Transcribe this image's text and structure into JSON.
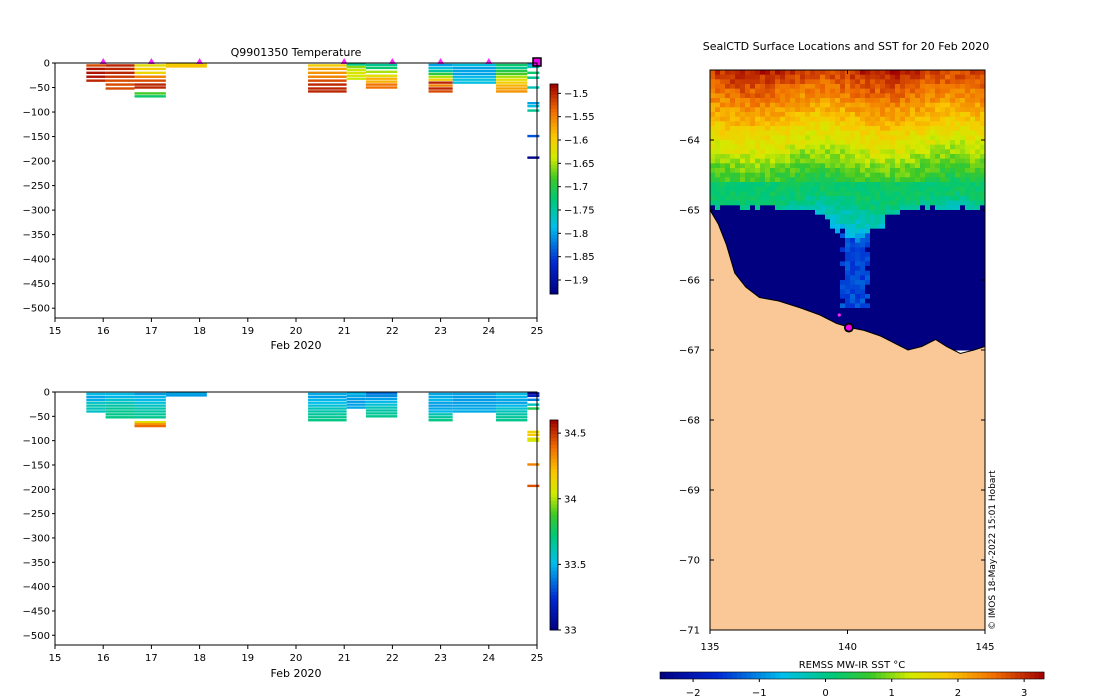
{
  "chart_data": [
    {
      "type": "heatmap",
      "name": "temperature-section",
      "title": "Q9901350  Temperature",
      "xlabel": "Feb 2020",
      "x_ticks": [
        15,
        16,
        17,
        18,
        19,
        20,
        21,
        22,
        23,
        24,
        25
      ],
      "xlim": [
        15,
        25
      ],
      "y_ticks": [
        0,
        -50,
        -100,
        -150,
        -200,
        -250,
        -300,
        -350,
        -400,
        -450,
        -500
      ],
      "ylim": [
        -520,
        0
      ],
      "colorbar": {
        "min": -1.93,
        "max": -1.48,
        "ticks": [
          -1.5,
          -1.55,
          -1.6,
          -1.65,
          -1.7,
          -1.75,
          -1.8,
          -1.85,
          -1.9
        ]
      },
      "profile_markers": [
        16,
        17,
        18,
        21,
        22,
        23,
        24,
        25
      ],
      "profiles": [
        {
          "x0": 15.65,
          "x1": 16.05,
          "levels": [
            {
              "d": -5,
              "v": -1.52
            },
            {
              "d": -12,
              "v": -1.49
            },
            {
              "d": -20,
              "v": -1.49
            },
            {
              "d": -28,
              "v": -1.49
            },
            {
              "d": -36,
              "v": -1.5
            }
          ]
        },
        {
          "x0": 16.05,
          "x1": 16.65,
          "levels": [
            {
              "d": -5,
              "v": -1.5
            },
            {
              "d": -12,
              "v": -1.5
            },
            {
              "d": -20,
              "v": -1.5
            },
            {
              "d": -28,
              "v": -1.51
            },
            {
              "d": -36,
              "v": -1.52
            },
            {
              "d": -44,
              "v": -1.52
            },
            {
              "d": -52,
              "v": -1.52
            }
          ]
        },
        {
          "x0": 16.65,
          "x1": 17.3,
          "levels": [
            {
              "d": -5,
              "v": -1.62
            },
            {
              "d": -12,
              "v": -1.6
            },
            {
              "d": -20,
              "v": -1.61
            },
            {
              "d": -28,
              "v": -1.55
            },
            {
              "d": -36,
              "v": -1.52
            },
            {
              "d": -44,
              "v": -1.5
            },
            {
              "d": -50,
              "v": -1.5
            },
            {
              "d": -62,
              "v": -1.68
            },
            {
              "d": -68,
              "v": -1.72
            }
          ]
        },
        {
          "x0": 17.3,
          "x1": 18.15,
          "levels": [
            {
              "d": -3,
              "v": -1.6
            },
            {
              "d": -7,
              "v": -1.59
            }
          ]
        },
        {
          "x0": 20.25,
          "x1": 21.05,
          "levels": [
            {
              "d": -5,
              "v": -1.6
            },
            {
              "d": -12,
              "v": -1.57
            },
            {
              "d": -20,
              "v": -1.56
            },
            {
              "d": -28,
              "v": -1.55
            },
            {
              "d": -36,
              "v": -1.52
            },
            {
              "d": -44,
              "v": -1.5
            },
            {
              "d": -52,
              "v": -1.5
            },
            {
              "d": -58,
              "v": -1.5
            }
          ]
        },
        {
          "x0": 21.05,
          "x1": 21.45,
          "levels": [
            {
              "d": -3,
              "v": -1.74
            },
            {
              "d": -8,
              "v": -1.66
            },
            {
              "d": -14,
              "v": -1.64
            },
            {
              "d": -20,
              "v": -1.63
            },
            {
              "d": -26,
              "v": -1.63
            },
            {
              "d": -32,
              "v": -1.64
            }
          ]
        },
        {
          "x0": 21.45,
          "x1": 22.1,
          "levels": [
            {
              "d": -4,
              "v": -1.74
            },
            {
              "d": -10,
              "v": -1.72
            },
            {
              "d": -18,
              "v": -1.65
            },
            {
              "d": -26,
              "v": -1.62
            },
            {
              "d": -32,
              "v": -1.58
            },
            {
              "d": -38,
              "v": -1.58
            },
            {
              "d": -44,
              "v": -1.54
            },
            {
              "d": -50,
              "v": -1.54
            }
          ]
        },
        {
          "x0": 22.75,
          "x1": 23.25,
          "levels": [
            {
              "d": -4,
              "v": -1.8
            },
            {
              "d": -10,
              "v": -1.78
            },
            {
              "d": -16,
              "v": -1.75
            },
            {
              "d": -22,
              "v": -1.7
            },
            {
              "d": -28,
              "v": -1.65
            },
            {
              "d": -34,
              "v": -1.6
            },
            {
              "d": -40,
              "v": -1.5
            },
            {
              "d": -46,
              "v": -1.55
            },
            {
              "d": -52,
              "v": -1.5
            },
            {
              "d": -58,
              "v": -1.52
            }
          ]
        },
        {
          "x0": 23.25,
          "x1": 24.15,
          "levels": [
            {
              "d": -4,
              "v": -1.78
            },
            {
              "d": -10,
              "v": -1.8
            },
            {
              "d": -16,
              "v": -1.8
            },
            {
              "d": -22,
              "v": -1.8
            },
            {
              "d": -28,
              "v": -1.79
            },
            {
              "d": -34,
              "v": -1.78
            },
            {
              "d": -40,
              "v": -1.78
            }
          ]
        },
        {
          "x0": 24.15,
          "x1": 24.8,
          "levels": [
            {
              "d": -4,
              "v": -1.72
            },
            {
              "d": -10,
              "v": -1.74
            },
            {
              "d": -16,
              "v": -1.7
            },
            {
              "d": -22,
              "v": -1.68
            },
            {
              "d": -28,
              "v": -1.65
            },
            {
              "d": -34,
              "v": -1.62
            },
            {
              "d": -40,
              "v": -1.6
            },
            {
              "d": -46,
              "v": -1.58
            },
            {
              "d": -52,
              "v": -1.57
            },
            {
              "d": -58,
              "v": -1.56
            }
          ]
        },
        {
          "x0": 24.8,
          "x1": 25.05,
          "levels": [
            {
              "d": -3,
              "v": -1.8
            },
            {
              "d": -8,
              "v": -1.76
            },
            {
              "d": -20,
              "v": -1.72
            },
            {
              "d": -30,
              "v": -1.74
            },
            {
              "d": -50,
              "v": -1.76
            },
            {
              "d": -82,
              "v": -1.8
            },
            {
              "d": -88,
              "v": -1.78
            },
            {
              "d": -97,
              "v": -1.74
            },
            {
              "d": -149,
              "v": -1.84
            },
            {
              "d": -193,
              "v": -1.92
            }
          ]
        }
      ]
    },
    {
      "type": "heatmap",
      "name": "salinity-section",
      "xlabel": "Feb 2020",
      "x_ticks": [
        15,
        16,
        17,
        18,
        19,
        20,
        21,
        22,
        23,
        24,
        25
      ],
      "xlim": [
        15,
        25
      ],
      "y_ticks": [
        0,
        -50,
        -100,
        -150,
        -200,
        -250,
        -300,
        -350,
        -400,
        -450,
        -500
      ],
      "ylim": [
        -520,
        0
      ],
      "colorbar": {
        "min": 33.0,
        "max": 34.6,
        "ticks": [
          33,
          33.5,
          34,
          34.5
        ]
      },
      "profiles": [
        {
          "x0": 15.65,
          "x1": 16.05,
          "levels": [
            {
              "d": -4,
              "v": 33.52
            },
            {
              "d": -10,
              "v": 33.47
            },
            {
              "d": -16,
              "v": 33.48
            },
            {
              "d": -22,
              "v": 33.58
            },
            {
              "d": -28,
              "v": 33.62
            },
            {
              "d": -34,
              "v": 33.6
            },
            {
              "d": -40,
              "v": 33.58
            }
          ]
        },
        {
          "x0": 16.05,
          "x1": 16.65,
          "levels": [
            {
              "d": -4,
              "v": 33.52
            },
            {
              "d": -10,
              "v": 33.5
            },
            {
              "d": -16,
              "v": 33.57
            },
            {
              "d": -22,
              "v": 33.6
            },
            {
              "d": -28,
              "v": 33.64
            },
            {
              "d": -34,
              "v": 33.66
            },
            {
              "d": -40,
              "v": 33.68
            },
            {
              "d": -46,
              "v": 33.68
            },
            {
              "d": -52,
              "v": 33.7
            }
          ]
        },
        {
          "x0": 16.65,
          "x1": 17.3,
          "levels": [
            {
              "d": -4,
              "v": 33.45
            },
            {
              "d": -10,
              "v": 33.5
            },
            {
              "d": -16,
              "v": 33.5
            },
            {
              "d": -22,
              "v": 33.55
            },
            {
              "d": -28,
              "v": 33.58
            },
            {
              "d": -34,
              "v": 33.62
            },
            {
              "d": -40,
              "v": 33.64
            },
            {
              "d": -46,
              "v": 33.66
            },
            {
              "d": -52,
              "v": 33.68
            },
            {
              "d": -62,
              "v": 34.1
            },
            {
              "d": -66,
              "v": 34.3
            },
            {
              "d": -70,
              "v": 34.4
            }
          ]
        },
        {
          "x0": 17.3,
          "x1": 18.15,
          "levels": [
            {
              "d": -3,
              "v": 33.47
            },
            {
              "d": -7,
              "v": 33.45
            }
          ]
        },
        {
          "x0": 20.25,
          "x1": 21.05,
          "levels": [
            {
              "d": -4,
              "v": 33.48
            },
            {
              "d": -10,
              "v": 33.46
            },
            {
              "d": -16,
              "v": 33.5
            },
            {
              "d": -22,
              "v": 33.52
            },
            {
              "d": -28,
              "v": 33.55
            },
            {
              "d": -34,
              "v": 33.6
            },
            {
              "d": -40,
              "v": 33.63
            },
            {
              "d": -46,
              "v": 33.66
            },
            {
              "d": -52,
              "v": 33.68
            },
            {
              "d": -58,
              "v": 33.7
            }
          ]
        },
        {
          "x0": 21.05,
          "x1": 21.45,
          "levels": [
            {
              "d": -3,
              "v": 33.5
            },
            {
              "d": -8,
              "v": 33.47
            },
            {
              "d": -14,
              "v": 33.45
            },
            {
              "d": -20,
              "v": 33.45
            },
            {
              "d": -26,
              "v": 33.46
            },
            {
              "d": -32,
              "v": 33.47
            }
          ]
        },
        {
          "x0": 21.45,
          "x1": 22.1,
          "levels": [
            {
              "d": -3,
              "v": 33.38
            },
            {
              "d": -8,
              "v": 33.42
            },
            {
              "d": -14,
              "v": 33.46
            },
            {
              "d": -20,
              "v": 33.5
            },
            {
              "d": -26,
              "v": 33.55
            },
            {
              "d": -32,
              "v": 33.6
            },
            {
              "d": -38,
              "v": 33.64
            },
            {
              "d": -44,
              "v": 33.66
            },
            {
              "d": -50,
              "v": 33.68
            }
          ]
        },
        {
          "x0": 22.75,
          "x1": 23.25,
          "levels": [
            {
              "d": -4,
              "v": 33.47
            },
            {
              "d": -10,
              "v": 33.48
            },
            {
              "d": -16,
              "v": 33.5
            },
            {
              "d": -22,
              "v": 33.46
            },
            {
              "d": -28,
              "v": 33.45
            },
            {
              "d": -34,
              "v": 33.47
            },
            {
              "d": -40,
              "v": 33.5
            },
            {
              "d": -46,
              "v": 33.62
            },
            {
              "d": -52,
              "v": 33.66
            },
            {
              "d": -58,
              "v": 33.7
            }
          ]
        },
        {
          "x0": 23.25,
          "x1": 24.15,
          "levels": [
            {
              "d": -4,
              "v": 33.46
            },
            {
              "d": -10,
              "v": 33.45
            },
            {
              "d": -16,
              "v": 33.45
            },
            {
              "d": -22,
              "v": 33.45
            },
            {
              "d": -28,
              "v": 33.46
            },
            {
              "d": -34,
              "v": 33.47
            },
            {
              "d": -40,
              "v": 33.48
            }
          ]
        },
        {
          "x0": 24.15,
          "x1": 24.8,
          "levels": [
            {
              "d": -4,
              "v": 33.52
            },
            {
              "d": -10,
              "v": 33.5
            },
            {
              "d": -16,
              "v": 33.47
            },
            {
              "d": -22,
              "v": 33.46
            },
            {
              "d": -28,
              "v": 33.5
            },
            {
              "d": -34,
              "v": 33.56
            },
            {
              "d": -40,
              "v": 33.6
            },
            {
              "d": -46,
              "v": 33.64
            },
            {
              "d": -52,
              "v": 33.66
            },
            {
              "d": -58,
              "v": 33.68
            }
          ]
        },
        {
          "x0": 24.8,
          "x1": 25.05,
          "levels": [
            {
              "d": -3,
              "v": 33.05
            },
            {
              "d": -8,
              "v": 33.2
            },
            {
              "d": -16,
              "v": 33.4
            },
            {
              "d": -26,
              "v": 33.6
            },
            {
              "d": -34,
              "v": 33.8
            },
            {
              "d": -82,
              "v": 34.15
            },
            {
              "d": -88,
              "v": 34.2
            },
            {
              "d": -96,
              "v": 34.1
            },
            {
              "d": -100,
              "v": 34.05
            },
            {
              "d": -149,
              "v": 34.35
            },
            {
              "d": -193,
              "v": 34.45
            }
          ]
        }
      ]
    },
    {
      "type": "heatmap",
      "name": "sst-map",
      "title": "SealCTD Surface Locations and SST for 20 Feb 2020",
      "xlabel": "REMSS MW-IR SST °C",
      "lon_ticks": [
        135,
        140,
        145
      ],
      "lat_ticks": [
        -64,
        -65,
        -66,
        -67,
        -68,
        -69,
        -70,
        -71
      ],
      "lon_range": [
        135,
        145
      ],
      "lat_range": [
        -71,
        -63
      ],
      "colorbar": {
        "min": -2.5,
        "max": 3.3,
        "ticks": [
          -2,
          -1,
          0,
          1,
          2,
          3
        ]
      },
      "land_color": "#f9c896",
      "ice_color": "#0a35b0",
      "credit": "© IMOS 18-May-2022 15:01 Hobart",
      "surface_locations": [
        {
          "lon": 140.05,
          "lat": -66.68,
          "type": "latest"
        },
        {
          "lon": 139.7,
          "lat": -66.5,
          "type": "track"
        }
      ]
    }
  ]
}
